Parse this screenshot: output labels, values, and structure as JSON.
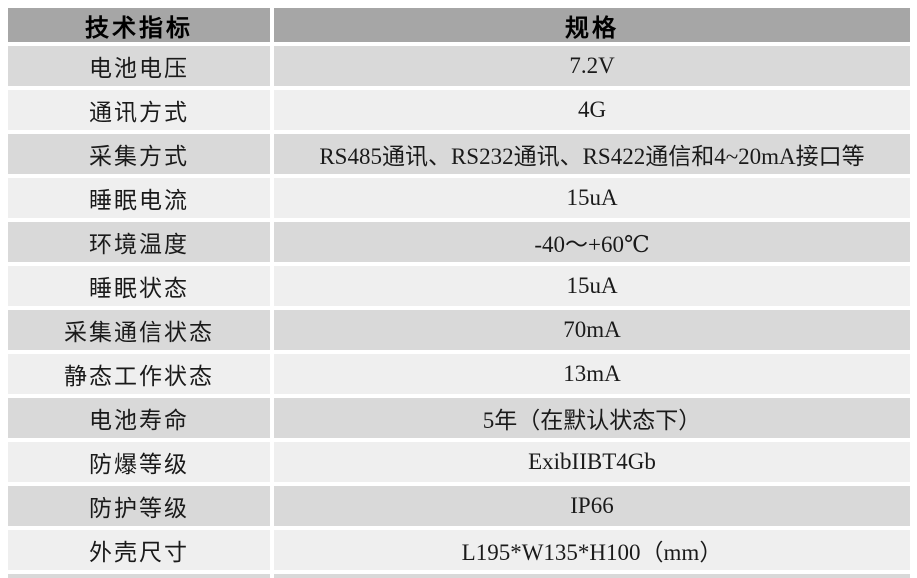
{
  "table": {
    "columns": [
      "技术指标",
      "规格"
    ],
    "rows": [
      {
        "label": "电池电压",
        "value": "7.2V"
      },
      {
        "label": "通讯方式",
        "value": "4G"
      },
      {
        "label": "采集方式",
        "value": "RS485通讯、RS232通讯、RS422通信和4~20mA接口等"
      },
      {
        "label": "睡眠电流",
        "value": "15uA"
      },
      {
        "label": "环境温度",
        "value": "-40～+60℃"
      },
      {
        "label": "睡眠状态",
        "value": "15uA"
      },
      {
        "label": "采集通信状态",
        "value": "70mA"
      },
      {
        "label": "静态工作状态",
        "value": "13mA"
      },
      {
        "label": "电池寿命",
        "value": "5年（在默认状态下）"
      },
      {
        "label": "防爆等级",
        "value": "ExibIIBT4Gb"
      },
      {
        "label": "防护等级",
        "value": "IP66"
      },
      {
        "label": "外壳尺寸",
        "value": "L195*W135*H100（mm）"
      }
    ]
  },
  "colors": {
    "header_bg": "#a6a6a6",
    "row_odd_bg": "#d9d9d9",
    "row_even_bg": "#efefef",
    "page_bg": "#ffffff",
    "text_color": "#1a1a1a"
  }
}
